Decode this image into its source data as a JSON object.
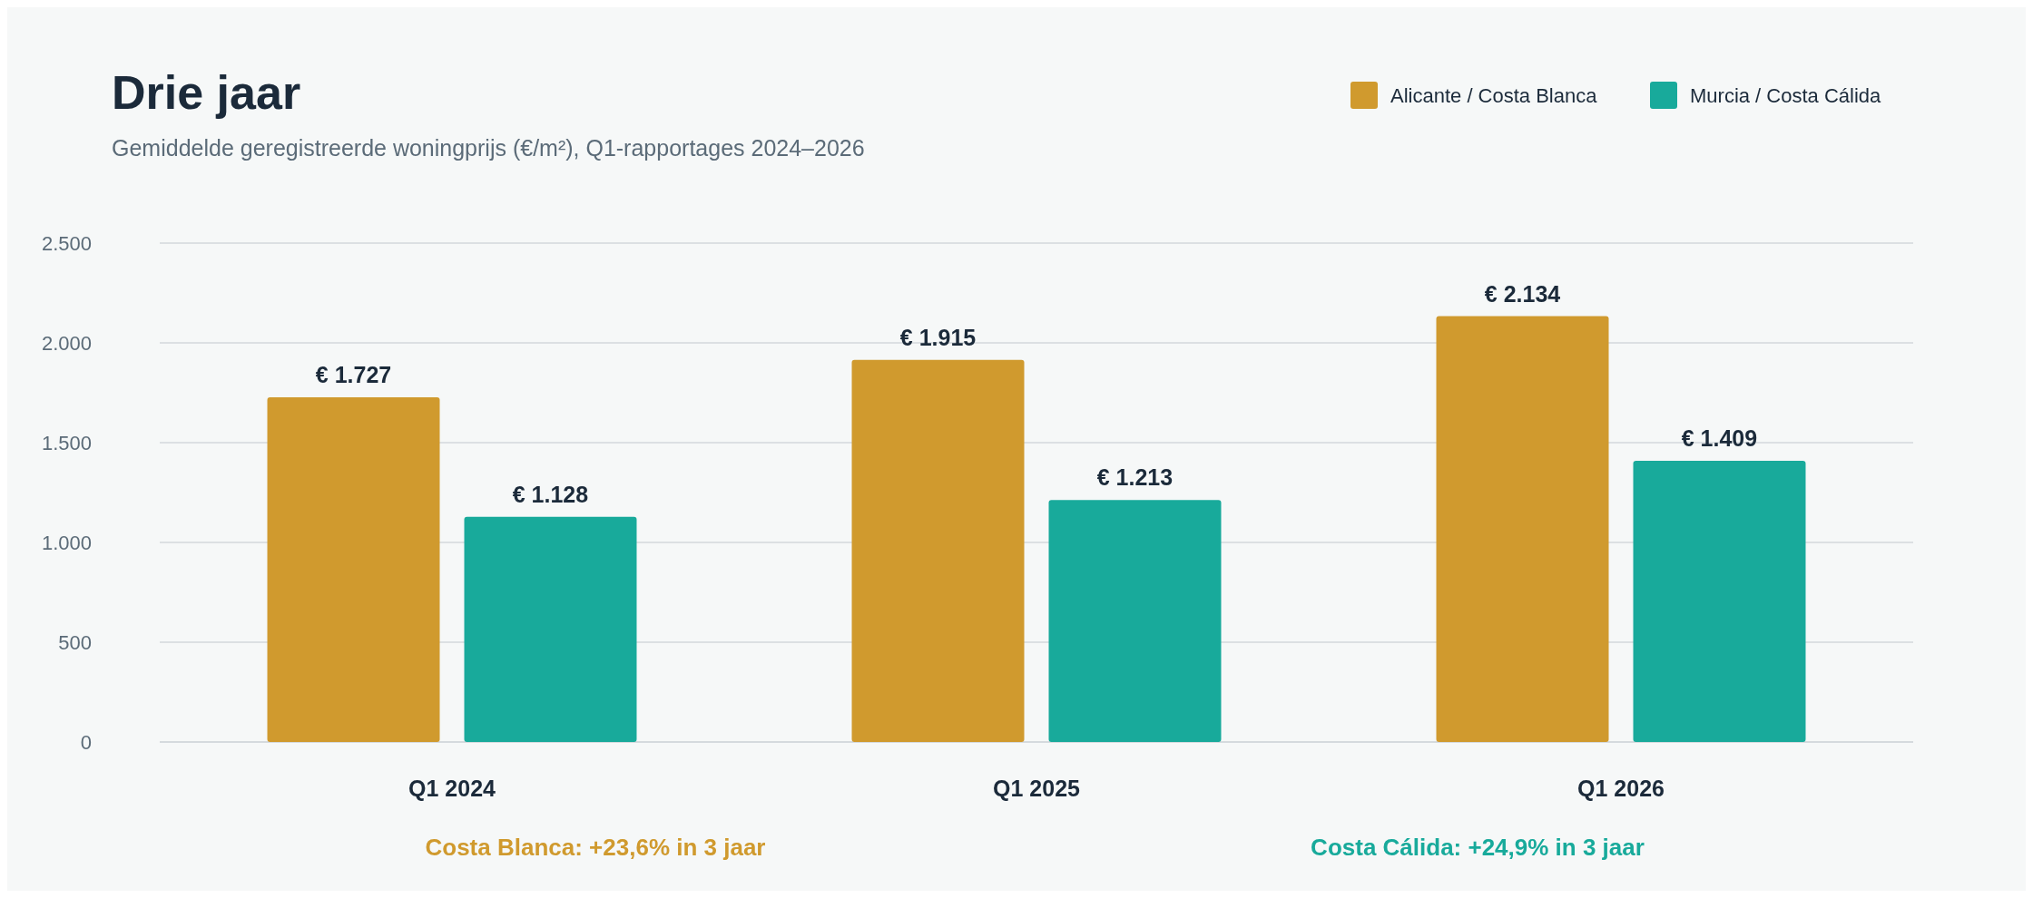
{
  "chart_data": {
    "type": "bar",
    "title": "Drie jaar",
    "subtitle": "Gemiddelde geregistreerde woningprijs (€/m²), Q1-rapportages 2024–2026",
    "categories": [
      "Q1 2024",
      "Q1 2025",
      "Q1 2026"
    ],
    "series": [
      {
        "name": "Alicante / Costa Blanca",
        "color": "#d09a2e",
        "values": [
          1727,
          1915,
          2134
        ],
        "value_labels": [
          "€ 1.727",
          "€ 1.915",
          "€ 2.134"
        ]
      },
      {
        "name": "Murcia / Costa Cálida",
        "color": "#18aa9b",
        "values": [
          1128,
          1213,
          1409
        ],
        "value_labels": [
          "€ 1.128",
          "€ 1.213",
          "€ 1.409"
        ]
      }
    ],
    "ylim": [
      0,
      2500
    ],
    "yticks": [
      0,
      500,
      {
        "value": 1000,
        "label": "1.000"
      },
      {
        "value": 1500,
        "label": "1.500"
      },
      {
        "value": 2000,
        "label": "2.000"
      },
      {
        "value": 2500,
        "label": "2.500"
      }
    ],
    "grid": "y",
    "legend": "top right",
    "annotations": [
      "Costa Blanca: +23,6% in 3 jaar",
      "Costa Cálida: +24,9% in 3 jaar"
    ]
  }
}
